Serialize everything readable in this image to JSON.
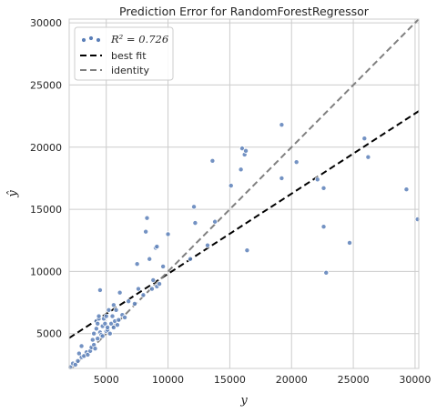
{
  "chart_data": {
    "type": "scatter",
    "title": "Prediction Error for RandomForestRegressor",
    "xlabel": "y",
    "ylabel": "ŷ",
    "xlim": [
      2000,
      30300
    ],
    "ylim": [
      2200,
      30300
    ],
    "xticks": [
      5000,
      10000,
      15000,
      20000,
      25000,
      30000
    ],
    "yticks": [
      5000,
      10000,
      15000,
      20000,
      25000,
      30000
    ],
    "grid": true,
    "legend_position": "top-left",
    "colors": {
      "points": "#5b7fb8",
      "best_fit": "#000000",
      "identity": "#808080",
      "grid": "#cccccc"
    },
    "legend": [
      {
        "kind": "points",
        "label": "R² = 0.726"
      },
      {
        "kind": "best_fit",
        "label": "best fit"
      },
      {
        "kind": "identity",
        "label": "identity"
      }
    ],
    "series": [
      {
        "name": "R² = 0.726",
        "kind": "scatter",
        "points": [
          [
            2100,
            2300
          ],
          [
            2300,
            2600
          ],
          [
            2500,
            2500
          ],
          [
            2700,
            2800
          ],
          [
            2800,
            3400
          ],
          [
            3000,
            3100
          ],
          [
            3000,
            4000
          ],
          [
            3200,
            3200
          ],
          [
            3400,
            3500
          ],
          [
            3500,
            3300
          ],
          [
            3700,
            3600
          ],
          [
            3800,
            3900
          ],
          [
            3900,
            4500
          ],
          [
            4000,
            4100
          ],
          [
            4000,
            5000
          ],
          [
            4100,
            3800
          ],
          [
            4200,
            5400
          ],
          [
            4200,
            6000
          ],
          [
            4300,
            5800
          ],
          [
            4300,
            4600
          ],
          [
            4400,
            6200
          ],
          [
            4400,
            6400
          ],
          [
            4500,
            8500
          ],
          [
            4500,
            5100
          ],
          [
            4600,
            4900
          ],
          [
            4700,
            5600
          ],
          [
            4700,
            4800
          ],
          [
            4800,
            6200
          ],
          [
            4900,
            5800
          ],
          [
            5000,
            5200
          ],
          [
            5000,
            6400
          ],
          [
            5100,
            5300
          ],
          [
            5100,
            5500
          ],
          [
            5200,
            6900
          ],
          [
            5300,
            5000
          ],
          [
            5400,
            5800
          ],
          [
            5500,
            6400
          ],
          [
            5600,
            7300
          ],
          [
            5600,
            5500
          ],
          [
            5700,
            6000
          ],
          [
            5800,
            6900
          ],
          [
            5900,
            5700
          ],
          [
            6000,
            6100
          ],
          [
            6100,
            8300
          ],
          [
            6300,
            6500
          ],
          [
            6500,
            6300
          ],
          [
            6800,
            7600
          ],
          [
            7300,
            7400
          ],
          [
            7500,
            10600
          ],
          [
            7600,
            8600
          ],
          [
            8000,
            8100
          ],
          [
            8200,
            13200
          ],
          [
            8300,
            14300
          ],
          [
            8500,
            11000
          ],
          [
            8700,
            8600
          ],
          [
            8800,
            9300
          ],
          [
            9000,
            11900
          ],
          [
            9100,
            12000
          ],
          [
            9100,
            8800
          ],
          [
            9300,
            9000
          ],
          [
            9600,
            10400
          ],
          [
            10000,
            13000
          ],
          [
            11800,
            11000
          ],
          [
            12100,
            15200
          ],
          [
            12200,
            13900
          ],
          [
            13200,
            12100
          ],
          [
            13600,
            18900
          ],
          [
            13800,
            14000
          ],
          [
            15100,
            16900
          ],
          [
            15900,
            18200
          ],
          [
            16000,
            19900
          ],
          [
            16200,
            19400
          ],
          [
            16300,
            19700
          ],
          [
            16400,
            11700
          ],
          [
            19200,
            21800
          ],
          [
            19200,
            17500
          ],
          [
            20400,
            18800
          ],
          [
            22100,
            17400
          ],
          [
            22600,
            16700
          ],
          [
            22600,
            13600
          ],
          [
            22800,
            9900
          ],
          [
            24700,
            12300
          ],
          [
            25900,
            20700
          ],
          [
            26200,
            19200
          ],
          [
            29300,
            16600
          ],
          [
            30200,
            14200
          ]
        ]
      },
      {
        "name": "best fit",
        "kind": "line",
        "x": [
          2000,
          30300
        ],
        "y": [
          4650,
          22900
        ]
      },
      {
        "name": "identity",
        "kind": "line",
        "x": [
          2000,
          30300
        ],
        "y": [
          2000,
          30300
        ]
      }
    ]
  }
}
